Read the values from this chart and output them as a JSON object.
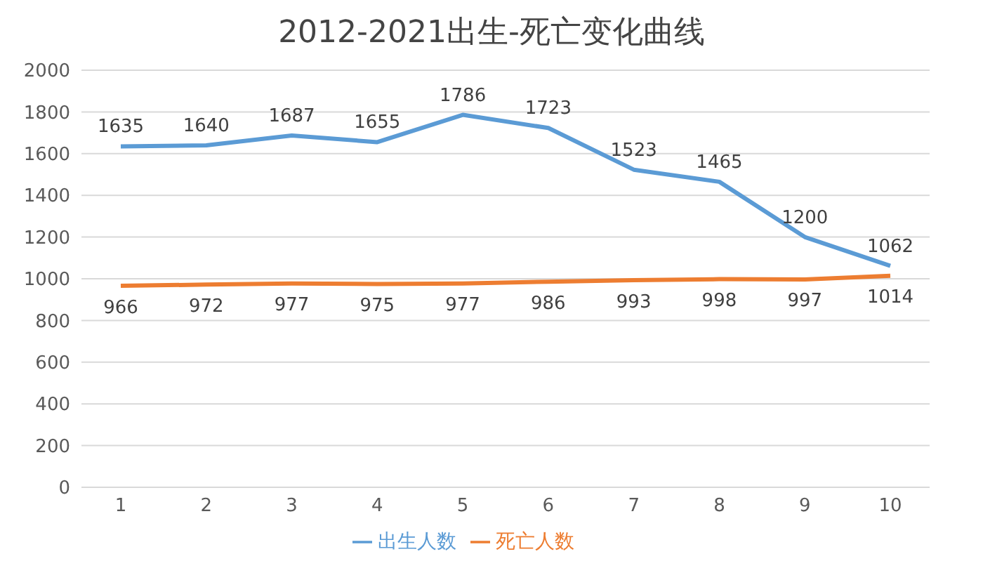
{
  "chart_data": {
    "type": "line",
    "title": "2012-2021出生-死亡变化曲线",
    "categories": [
      "1",
      "2",
      "3",
      "4",
      "5",
      "6",
      "7",
      "8",
      "9",
      "10"
    ],
    "series": [
      {
        "name": "出生人数",
        "color": "#5b9bd5",
        "values": [
          1635,
          1640,
          1687,
          1655,
          1786,
          1723,
          1523,
          1465,
          1200,
          1062
        ]
      },
      {
        "name": "死亡人数",
        "color": "#ed7d31",
        "values": [
          966,
          972,
          977,
          975,
          977,
          986,
          993,
          998,
          997,
          1014
        ]
      }
    ],
    "ylim": [
      0,
      2000
    ],
    "yticks": [
      0,
      200,
      400,
      600,
      800,
      1000,
      1200,
      1400,
      1600,
      1800,
      2000
    ],
    "grid": "y",
    "legend": "bottom",
    "data_labels": true,
    "marker": "none",
    "line_style": "solid"
  }
}
